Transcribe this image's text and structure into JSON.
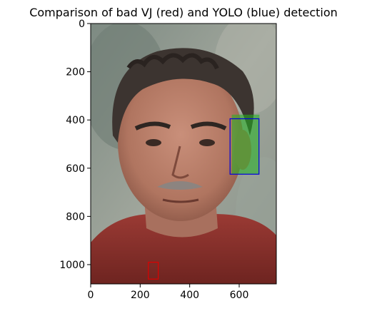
{
  "chart_data": {
    "type": "image",
    "title": "Comparison of bad VJ (red) and YOLO (blue) detection",
    "xlabel": "",
    "ylabel": "",
    "xlim": [
      0,
      750
    ],
    "ylim": [
      1080,
      0
    ],
    "x_ticks": [
      0,
      200,
      400,
      600
    ],
    "y_ticks": [
      0,
      200,
      400,
      600,
      800,
      1000
    ],
    "x_tick_labels": [
      "0",
      "200",
      "400",
      "600"
    ],
    "y_tick_labels": [
      "0",
      "200",
      "400",
      "600",
      "800",
      "1000"
    ],
    "detections": [
      {
        "type": "VJ",
        "color": "#dd0000",
        "x": 233,
        "y": 990,
        "w": 40,
        "h": 70
      },
      {
        "type": "YOLO",
        "color": "#0000dd",
        "x": 563,
        "y": 395,
        "w": 117,
        "h": 230
      }
    ],
    "highlight": {
      "color": "#22b422",
      "x": 570,
      "y": 378,
      "w": 112,
      "h": 247
    }
  }
}
